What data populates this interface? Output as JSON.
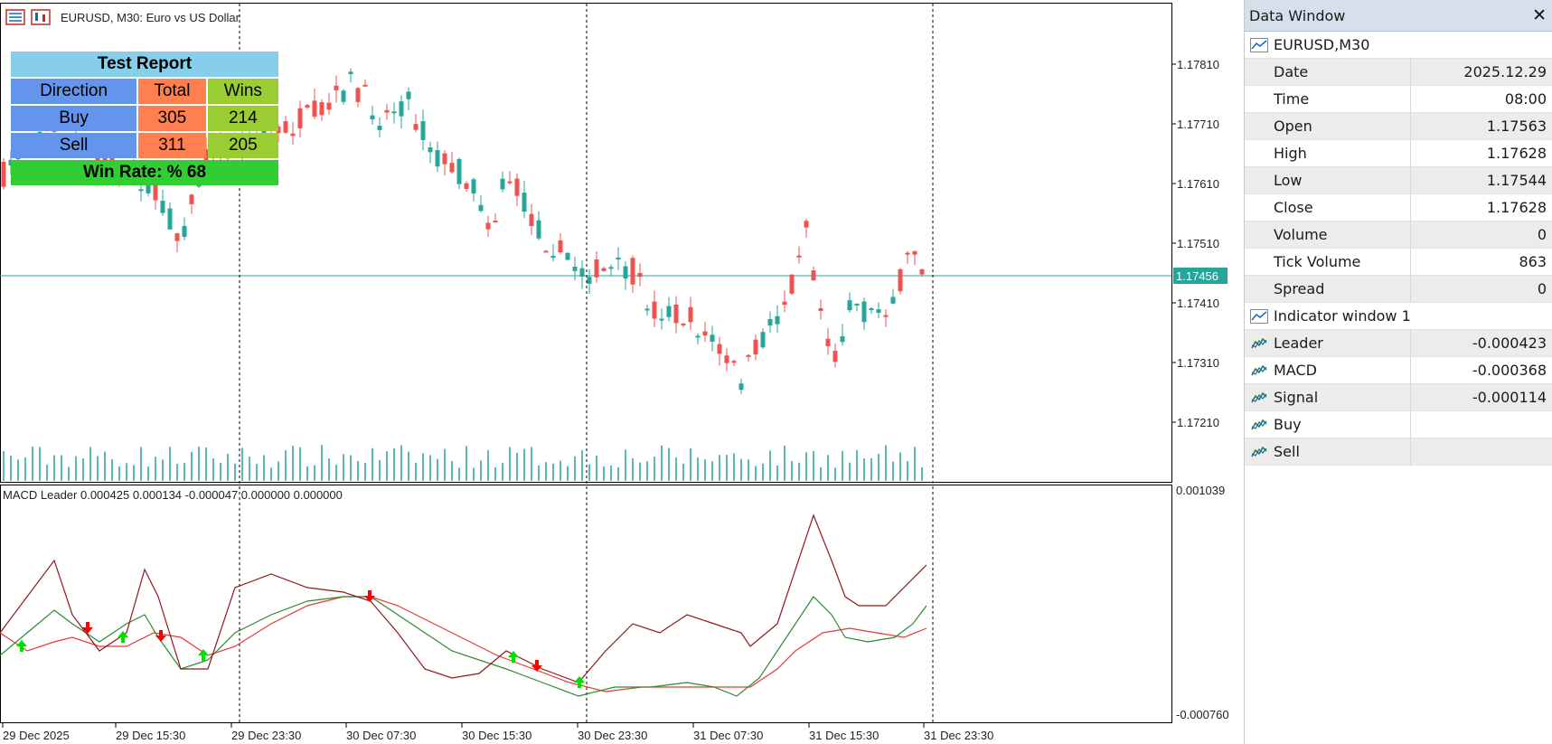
{
  "chart": {
    "symbol_label": "EURUSD, M30:  Euro vs US Dollar",
    "indicator_label": "MACD Leader 0.000425 0.000134 -0.000047 0.000000 0.000000",
    "current_price": "1.17456",
    "price_axis": [
      "1.17810",
      "1.17710",
      "1.17610",
      "1.17510",
      "1.17410",
      "1.17310",
      "1.17210"
    ],
    "indicator_axis": [
      "0.001039",
      "-0.000760"
    ],
    "time_axis": [
      "29 Dec 2025",
      "29 Dec 15:30",
      "29 Dec 23:30",
      "30 Dec 07:30",
      "30 Dec 15:30",
      "30 Dec 23:30",
      "31 Dec 07:30",
      "31 Dec 15:30",
      "31 Dec 23:30"
    ],
    "colors": {
      "bull": "#26a69a",
      "bear": "#ef5350",
      "macd": "#8b1a1a",
      "signal": "#2e8b2e",
      "leader": "#e53935",
      "buy_arrow": "#00e000",
      "sell_arrow": "#ff0000",
      "price_line": "#26a69a"
    }
  },
  "report": {
    "title": "Test Report",
    "headers": [
      "Direction",
      "Total",
      "Wins"
    ],
    "rows": [
      {
        "direction": "Buy",
        "total": "305",
        "wins": "214"
      },
      {
        "direction": "Sell",
        "total": "311",
        "wins": "205"
      }
    ],
    "win_rate": "Win Rate: %  68"
  },
  "data_window": {
    "title": "Data Window",
    "close_glyph": "✕",
    "symbol_section": "EURUSD,M30",
    "rows": [
      {
        "name": "Date",
        "value": "2025.12.29"
      },
      {
        "name": "Time",
        "value": "08:00"
      },
      {
        "name": "Open",
        "value": "1.17563"
      },
      {
        "name": "High",
        "value": "1.17628"
      },
      {
        "name": "Low",
        "value": "1.17544"
      },
      {
        "name": "Close",
        "value": "1.17628"
      },
      {
        "name": "Volume",
        "value": "0"
      },
      {
        "name": "Tick Volume",
        "value": "863"
      },
      {
        "name": "Spread",
        "value": "0"
      }
    ],
    "indicator_section": "Indicator window 1",
    "indicator_rows": [
      {
        "name": "Leader",
        "value": "-0.000423"
      },
      {
        "name": "MACD",
        "value": "-0.000368"
      },
      {
        "name": "Signal",
        "value": "-0.000114"
      },
      {
        "name": "Buy",
        "value": ""
      },
      {
        "name": "Sell",
        "value": ""
      }
    ]
  }
}
